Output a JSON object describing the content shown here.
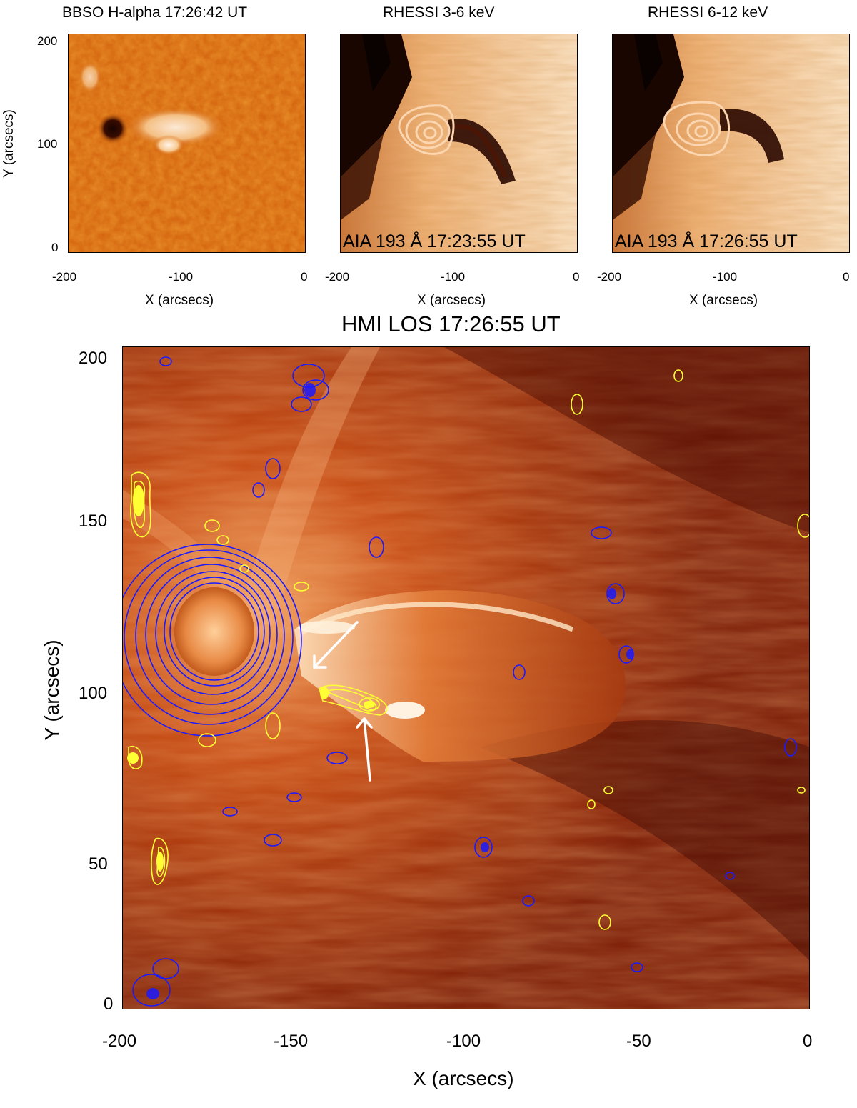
{
  "panels": [
    {
      "title": "BBSO H-alpha 17:26:42 UT",
      "annotation": "",
      "has_contours": false
    },
    {
      "title": "RHESSI 3-6 keV",
      "annotation": "AIA 193 Å 17:23:55 UT",
      "has_contours": true
    },
    {
      "title": "RHESSI 6-12 keV",
      "annotation": "AIA 193 Å 17:26:55 UT",
      "has_contours": true
    }
  ],
  "small_axes": {
    "x_ticks": [
      "-200",
      "-100",
      "0"
    ],
    "y_ticks": [
      "200",
      "100",
      "0"
    ],
    "x_label": "X (arcsecs)",
    "y_label": "Y (arcsecs)"
  },
  "main_panel": {
    "title": "HMI LOS 17:26:55 UT",
    "x_ticks": [
      "-200",
      "-150",
      "-100",
      "-50",
      "0"
    ],
    "y_ticks": [
      "200",
      "150",
      "100",
      "50",
      "0"
    ],
    "x_label": "X (arcsecs)",
    "y_label": "Y (arcsecs)",
    "x_range": [
      -200,
      0
    ],
    "y_range": [
      0,
      200
    ],
    "contour_colors": {
      "negative": "#1a1aff",
      "positive": "#ffff33"
    },
    "arrow_color": "#ffffff"
  },
  "colors": {
    "halpha": "#d4620a",
    "aia_light": "#fbe2c2",
    "aia_dark": "#2a0a00",
    "main_bg": "#a82a06"
  }
}
